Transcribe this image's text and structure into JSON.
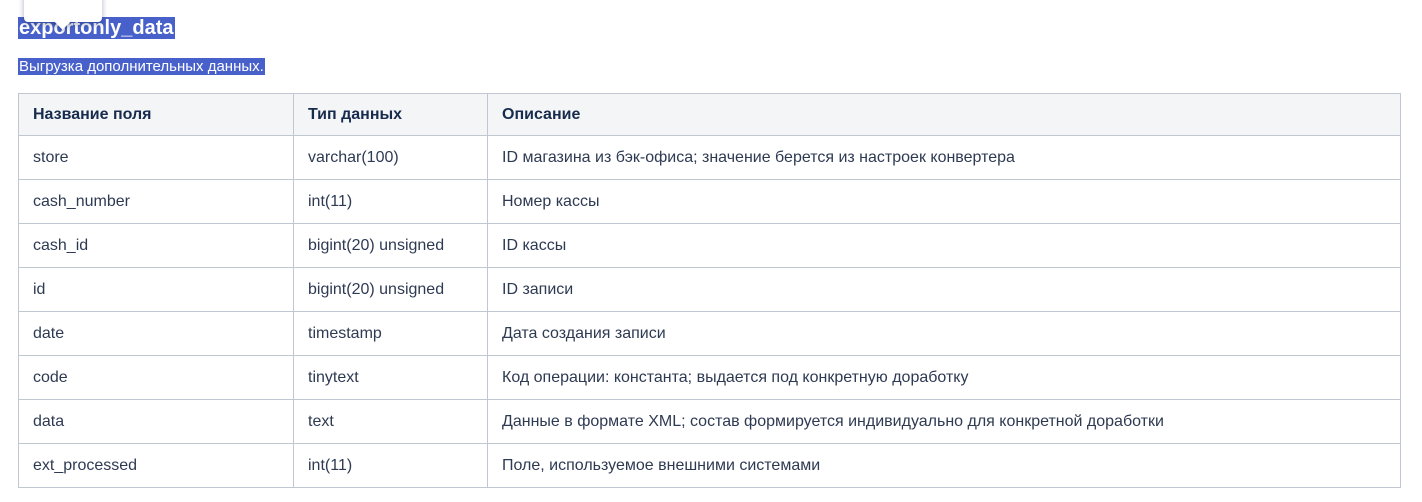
{
  "page": {
    "title": "exportonly_data",
    "subtitle": "Выгрузка дополнительных данных.",
    "selection_bg_color": "#4861ca",
    "selection_text_color": "#ffffff"
  },
  "tooltip": {
    "visible": "partially cut off at top edge"
  },
  "table": {
    "header_bg_color": "#f4f5f7",
    "header_text_color": "#172b4d",
    "body_text_color": "#2e3a52",
    "border_color": "#c1c7d0",
    "headers": [
      "Название поля",
      "Тип данных",
      "Описание"
    ],
    "rows": [
      [
        "store",
        "varchar(100)",
        "ID магазина из бэк-офиса; значение берется из настроек конвертера"
      ],
      [
        "cash_number",
        "int(11)",
        "Номер кассы"
      ],
      [
        "cash_id",
        "bigint(20) unsigned",
        "ID кассы"
      ],
      [
        "id",
        "bigint(20) unsigned",
        "ID записи"
      ],
      [
        "date",
        "timestamp",
        "Дата создания записи"
      ],
      [
        "code",
        "tinytext",
        "Код операции: константа; выдается под конкретную доработку"
      ],
      [
        "data",
        "text",
        "Данные в формате XML; состав формируется индивидуально для конкретной доработки"
      ],
      [
        "ext_processed",
        "int(11)",
        "Поле, используемое внешними системами"
      ]
    ]
  }
}
